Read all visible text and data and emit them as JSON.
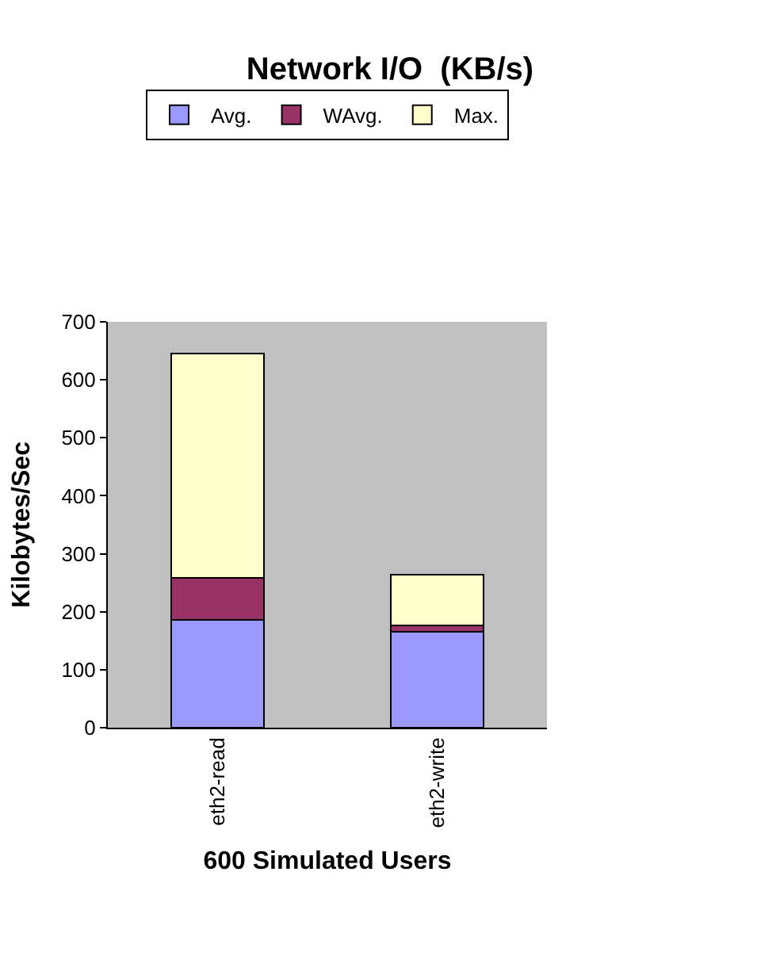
{
  "chart_data": {
    "type": "bar",
    "title": "Network I/O  (KB/s)",
    "xlabel": "600 Simulated Users",
    "ylabel": "Kilobytes/Sec",
    "categories": [
      "eth2-read",
      "eth2-write"
    ],
    "stacked": true,
    "series": [
      {
        "name": "Avg.",
        "color": "#9999ff",
        "values": [
          186,
          166
        ]
      },
      {
        "name": "WAvg.",
        "color": "#993366",
        "values": [
          73,
          10
        ]
      },
      {
        "name": "Max.",
        "color": "#ffffcc",
        "values": [
          386,
          88
        ]
      }
    ],
    "ylim": [
      0,
      700
    ],
    "yticks": [
      0,
      100,
      200,
      300,
      400,
      500,
      600,
      700
    ],
    "grid": false,
    "legend": "top"
  }
}
